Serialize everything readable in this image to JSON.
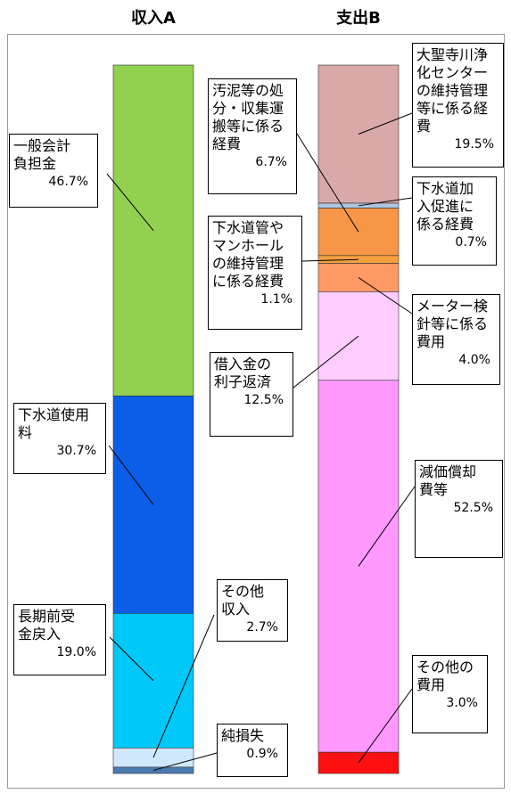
{
  "chart_data": [
    {
      "type": "stacked_bar",
      "title": "収入A",
      "categories": [
        "一般会計負担金",
        "下水道使用料",
        "長期前受金戻入",
        "その他収入",
        "純損失"
      ],
      "values": [
        46.7,
        30.7,
        19.0,
        2.7,
        0.9
      ],
      "value_labels": [
        "46.7%",
        "30.7%",
        "19.0%",
        "2.7%",
        "0.9%"
      ],
      "colors": [
        "#92d050",
        "#0a5ee8",
        "#00c8f8",
        "#cfe8fb",
        "#4a7ab0"
      ]
    },
    {
      "type": "stacked_bar",
      "title": "支出B",
      "categories": [
        "大聖寺川浄化センターの維持管理等に係る経費",
        "下水道加入促進に係る経費",
        "汚泥等の処分・収集運搬等に係る経費",
        "下水道管やマンホールの維持管理に係る経費",
        "メーター検針等に係る費用",
        "借入金の利子返済",
        "減価償却費等",
        "その他の費用"
      ],
      "values": [
        19.5,
        0.7,
        6.7,
        1.1,
        4.0,
        12.5,
        52.5,
        3.0
      ],
      "value_labels": [
        "19.5%",
        "0.7%",
        "6.7%",
        "1.1%",
        "4.0%",
        "12.5%",
        "52.5%",
        "3.0%"
      ],
      "colors": [
        "#d9a8a8",
        "#aec4e0",
        "#f79646",
        "#f7a040",
        "#ff9a66",
        "#ffccff",
        "#ff99ff",
        "#ff1010"
      ]
    }
  ]
}
